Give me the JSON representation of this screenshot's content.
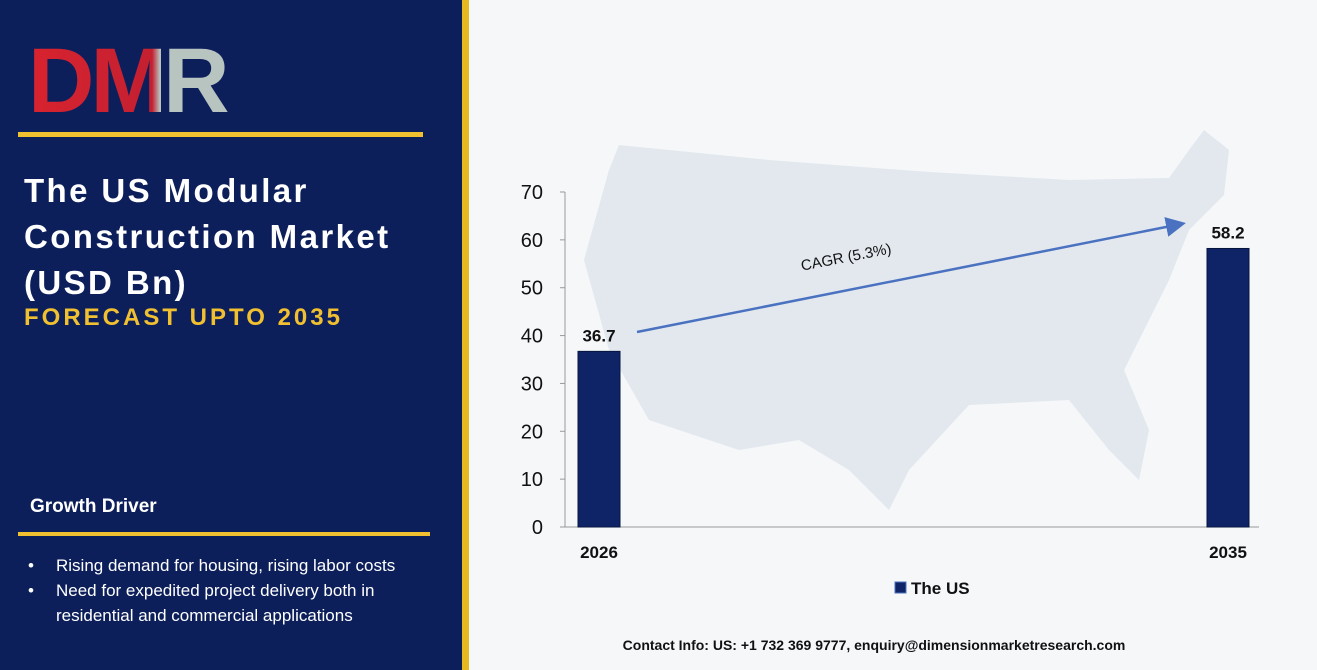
{
  "header": {
    "logo": "DMR",
    "title": "The US Modular Construction Market (USD Bn)",
    "subtitle": "FORECAST UPTO 2035"
  },
  "growth_driver": {
    "heading": "Growth Driver",
    "bullets": [
      "Rising demand for housing, rising labor costs",
      "Need for expedited project delivery both in residential and commercial applications"
    ]
  },
  "chart_data": {
    "type": "bar",
    "categories": [
      "2026",
      "2035"
    ],
    "series": [
      {
        "name": "The US",
        "color": "#0f2466",
        "values": [
          36.7,
          58.2
        ]
      }
    ],
    "ylim": [
      0,
      70
    ],
    "yticks": [
      0,
      10,
      20,
      30,
      40,
      50,
      60,
      70
    ],
    "annotation": "CAGR (5.3%)",
    "legend": "bottom"
  },
  "footer": {
    "contact": "Contact Info: US: +1 732 369 9777, enquiry@dimensionmarketresearch.com"
  }
}
